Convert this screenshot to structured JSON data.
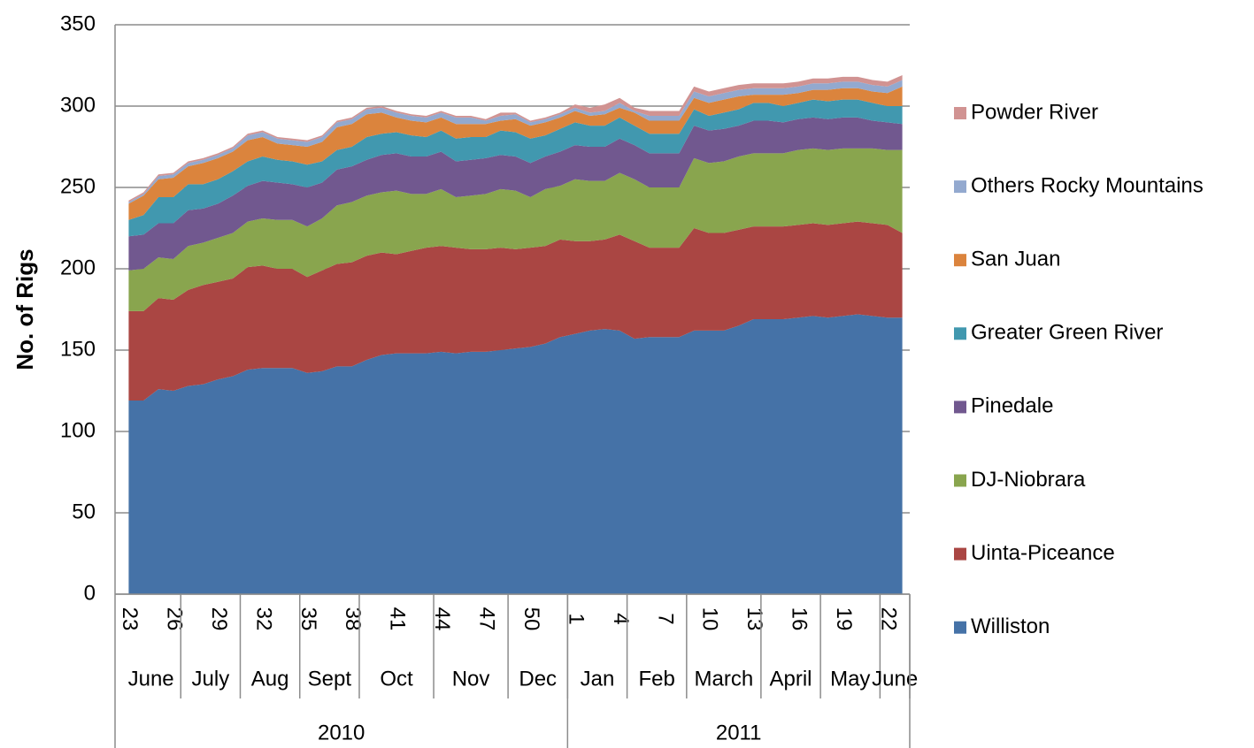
{
  "chart_data": {
    "type": "stacked_area",
    "y_axis_label": "No. of Rigs",
    "categories": [
      23,
      null,
      null,
      26,
      null,
      null,
      29,
      null,
      null,
      32,
      null,
      null,
      35,
      null,
      null,
      38,
      null,
      null,
      41,
      null,
      null,
      44,
      null,
      null,
      47,
      null,
      null,
      50,
      null,
      null,
      1,
      null,
      null,
      4,
      null,
      null,
      7,
      null,
      null,
      10,
      null,
      null,
      13,
      null,
      null,
      16,
      null,
      null,
      19,
      null,
      null,
      22,
      null
    ],
    "month_groups": [
      {
        "label": "June",
        "size": 4
      },
      {
        "label": "July",
        "size": 4
      },
      {
        "label": "Aug",
        "size": 4
      },
      {
        "label": "Sept",
        "size": 4
      },
      {
        "label": "Oct",
        "size": 5
      },
      {
        "label": "Nov",
        "size": 5
      },
      {
        "label": "Dec",
        "size": 4
      },
      {
        "label": "Jan",
        "size": 4
      },
      {
        "label": "Feb",
        "size": 4
      },
      {
        "label": "March",
        "size": 5
      },
      {
        "label": "April",
        "size": 4
      },
      {
        "label": "May",
        "size": 4
      },
      {
        "label": "June",
        "size": 2
      }
    ],
    "year_groups": [
      {
        "label": "2010",
        "size": 30
      },
      {
        "label": "2011",
        "size": 23
      }
    ],
    "ylim": [
      0,
      350
    ],
    "yticks": [
      0,
      50,
      100,
      150,
      200,
      250,
      300,
      350
    ],
    "grid": true,
    "legend": "right",
    "series": [
      {
        "name": "Williston",
        "color": "#4572a7",
        "values": [
          119,
          119,
          126,
          125,
          128,
          129,
          132,
          134,
          138,
          139,
          139,
          139,
          136,
          137,
          140,
          140,
          144,
          147,
          148,
          148,
          148,
          149,
          148,
          149,
          149,
          150,
          151,
          152,
          154,
          158,
          160,
          162,
          163,
          162,
          157,
          158,
          158,
          158,
          162,
          162,
          162,
          165,
          169,
          169,
          169,
          170,
          171,
          170,
          171,
          172,
          171,
          170,
          170
        ]
      },
      {
        "name": "Uinta-Piceance",
        "color": "#aa4643",
        "values": [
          55,
          55,
          56,
          56,
          59,
          61,
          60,
          60,
          63,
          63,
          61,
          61,
          59,
          62,
          63,
          64,
          64,
          63,
          61,
          63,
          65,
          65,
          65,
          63,
          63,
          63,
          61,
          61,
          60,
          60,
          57,
          55,
          55,
          59,
          60,
          55,
          55,
          55,
          63,
          60,
          60,
          59,
          57,
          57,
          57,
          57,
          57,
          57,
          57,
          57,
          57,
          57,
          52
        ]
      },
      {
        "name": "DJ-Niobrara",
        "color": "#89a54e",
        "values": [
          25,
          26,
          25,
          25,
          27,
          26,
          27,
          28,
          28,
          29,
          30,
          30,
          31,
          32,
          36,
          37,
          37,
          37,
          39,
          35,
          33,
          35,
          31,
          33,
          34,
          36,
          36,
          31,
          35,
          33,
          38,
          37,
          36,
          38,
          38,
          37,
          37,
          37,
          43,
          43,
          44,
          45,
          45,
          45,
          45,
          46,
          46,
          46,
          46,
          45,
          46,
          46,
          51
        ]
      },
      {
        "name": "Pinedale",
        "color": "#71588f",
        "values": [
          21,
          21,
          21,
          22,
          22,
          21,
          21,
          23,
          22,
          23,
          23,
          22,
          24,
          22,
          22,
          22,
          22,
          23,
          23,
          23,
          23,
          23,
          22,
          22,
          22,
          21,
          21,
          21,
          20,
          21,
          21,
          21,
          21,
          21,
          21,
          21,
          21,
          21,
          20,
          20,
          20,
          19,
          20,
          20,
          19,
          19,
          19,
          19,
          19,
          19,
          17,
          17,
          16
        ]
      },
      {
        "name": "Greater Green River",
        "color": "#4198af",
        "values": [
          10,
          12,
          16,
          16,
          16,
          15,
          15,
          15,
          15,
          15,
          14,
          14,
          14,
          13,
          12,
          12,
          14,
          13,
          13,
          13,
          12,
          13,
          14,
          14,
          13,
          15,
          15,
          15,
          13,
          14,
          14,
          13,
          13,
          13,
          12,
          12,
          12,
          12,
          10,
          9,
          10,
          10,
          11,
          11,
          10,
          10,
          11,
          11,
          11,
          11,
          11,
          10,
          11
        ]
      },
      {
        "name": "San Juan",
        "color": "#db843d",
        "values": [
          10,
          12,
          11,
          12,
          11,
          13,
          13,
          12,
          13,
          12,
          10,
          10,
          11,
          12,
          14,
          14,
          14,
          13,
          9,
          9,
          9,
          8,
          9,
          8,
          8,
          6,
          8,
          8,
          8,
          7,
          7,
          6,
          7,
          6,
          8,
          8,
          8,
          8,
          7,
          8,
          8,
          8,
          5,
          5,
          7,
          6,
          6,
          7,
          7,
          7,
          7,
          8,
          12
        ]
      },
      {
        "name": "Others Rocky Mountains",
        "color": "#93a9cf",
        "values": [
          1,
          1,
          2,
          2,
          2,
          2,
          2,
          2,
          3,
          3,
          3,
          3,
          3,
          3,
          3,
          3,
          3,
          3,
          3,
          3,
          3,
          3,
          4,
          4,
          2,
          3,
          3,
          2,
          2,
          2,
          2,
          2,
          2,
          3,
          1,
          3,
          3,
          3,
          4,
          4,
          4,
          4,
          4,
          4,
          4,
          4,
          4,
          4,
          4,
          4,
          4,
          4,
          4
        ]
      },
      {
        "name": "Powder River",
        "color": "#d19392",
        "values": [
          1,
          1,
          1,
          1,
          1,
          1,
          1,
          1,
          1,
          1,
          1,
          1,
          1,
          1,
          1,
          1,
          1,
          1,
          1,
          1,
          1,
          1,
          1,
          1,
          1,
          2,
          1,
          1,
          1,
          1,
          2,
          3,
          4,
          3,
          2,
          3,
          3,
          3,
          3,
          3,
          3,
          3,
          3,
          3,
          3,
          3,
          3,
          3,
          3,
          3,
          3,
          3,
          3
        ]
      }
    ]
  }
}
